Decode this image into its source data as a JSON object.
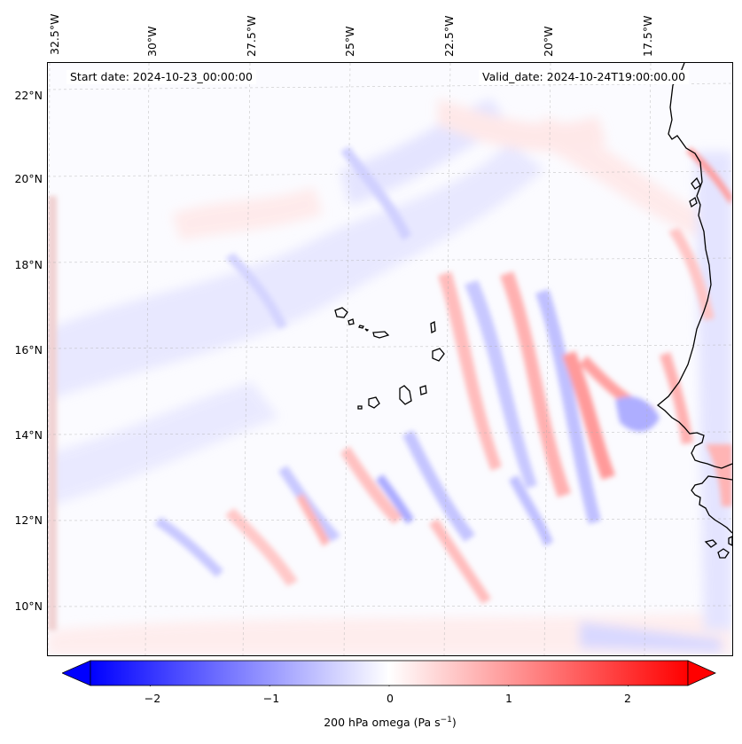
{
  "map": {
    "start_date": "Start date: 2024-10-23_00:00:00",
    "valid_date": "Valid_date: 2024-10-24T19:00:00.00",
    "lon_labels": [
      "32.5°W",
      "30°W",
      "27.5°W",
      "25°W",
      "22.5°W",
      "20°W",
      "17.5°W"
    ],
    "lat_labels": [
      "22°N",
      "20°N",
      "18°N",
      "16°N",
      "14°N",
      "12°N",
      "10°N"
    ],
    "gridlines": true,
    "coastline_color": "#000000"
  },
  "colorbar": {
    "label": "200 hPa omega (Pa s",
    "label_sup": "−1",
    "label_end": ")",
    "ticks": [
      "−2",
      "−1",
      "0",
      "1",
      "2"
    ],
    "tick_values": [
      -2,
      -1,
      0,
      1,
      2
    ],
    "vmin": -2.5,
    "vmax": 2.5,
    "cmap": "bwr",
    "low_color": "#0000ff",
    "mid_color": "#ffffff",
    "high_color": "#ff0000",
    "extend": "both"
  }
}
